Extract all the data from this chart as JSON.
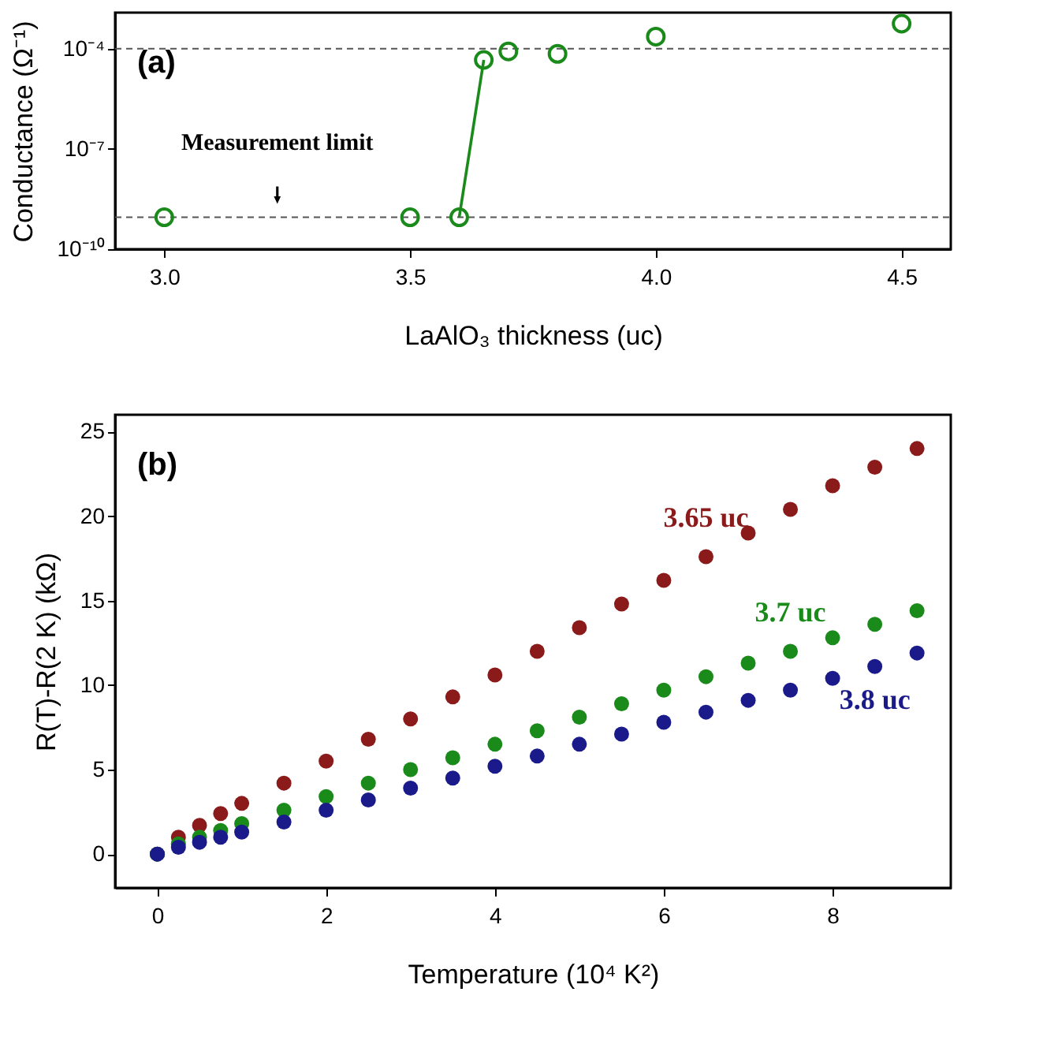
{
  "chart_data": [
    {
      "type": "scatter",
      "xlabel": "LaAlO₃ thickness (uc)",
      "ylabel": "Conductance (Ω⁻¹)",
      "log": "y",
      "marker": "circle",
      "grid": false,
      "legend": false,
      "xlim": [
        2.9,
        4.6
      ],
      "xticks": [
        {
          "value": 3,
          "label": "3.0"
        },
        {
          "value": 3.5,
          "label": "3.5"
        },
        {
          "value": 4,
          "label": "4.0"
        },
        {
          "value": 4.5,
          "label": "4.5"
        }
      ],
      "ylim": [
        1e-10,
        0.0012
      ],
      "yticks": [
        {
          "value": 1e-10,
          "label": "10⁻¹⁰"
        },
        {
          "value": 1e-07,
          "label": "10⁻⁷"
        },
        {
          "value": 0.0001,
          "label": "10⁻⁴"
        }
      ],
      "series": [
        {
          "color": "#1a8a1a",
          "x": [
            3.0,
            3.5,
            3.6,
            3.65,
            3.7,
            3.8,
            4.0,
            4.5
          ],
          "values": [
            9e-10,
            9e-10,
            9e-10,
            4.6e-05,
            8.3e-05,
            7e-05,
            0.00023,
            0.00056
          ]
        },
        {
          "type": "line",
          "marker": "none",
          "color": "#1a8a1a",
          "x": [
            3.6,
            3.65
          ],
          "values": [
            9e-10,
            4.6e-05
          ]
        }
      ],
      "ref_lines": [
        {
          "axis": "y",
          "value": 9e-10,
          "line_style": "dashed",
          "color": "#555555"
        },
        {
          "axis": "y",
          "value": 0.0001,
          "line_style": "dashed",
          "color": "#555555"
        }
      ],
      "annotations": [
        "(a)",
        {
          "text": "Measurement limit",
          "x": 3.23,
          "y": 9e-10
        }
      ]
    },
    {
      "type": "scatter",
      "xlabel": "Temperature (10⁴ K²)",
      "ylabel": "R(T)-R(2 K) (kΩ)",
      "marker": "circle",
      "grid": false,
      "legend": false,
      "xlim": [
        -0.5,
        9.4
      ],
      "xticks": [
        0,
        2,
        4,
        6,
        8
      ],
      "ylim": [
        -2,
        26
      ],
      "yticks": [
        0,
        5,
        10,
        15,
        20,
        25
      ],
      "x": [
        0,
        0.25,
        0.5,
        0.75,
        1,
        1.5,
        2,
        2.5,
        3,
        3.5,
        4,
        4.5,
        5,
        5.5,
        6,
        6.5,
        7,
        7.5,
        8,
        8.5,
        9
      ],
      "series": [
        {
          "name": "3.65 uc",
          "color": "#8b1a1a",
          "values": [
            0,
            1.0,
            1.7,
            2.4,
            3.0,
            4.2,
            5.5,
            6.8,
            8.0,
            9.3,
            10.6,
            12.0,
            13.4,
            14.8,
            16.2,
            17.6,
            19.0,
            20.4,
            21.8,
            22.9,
            24.0
          ]
        },
        {
          "name": "3.7 uc",
          "color": "#1a8a1a",
          "values": [
            0,
            0.6,
            1.0,
            1.4,
            1.8,
            2.6,
            3.4,
            4.2,
            5.0,
            5.7,
            6.5,
            7.3,
            8.1,
            8.9,
            9.7,
            10.5,
            11.3,
            12.0,
            12.8,
            13.6,
            14.4
          ]
        },
        {
          "name": "3.8 uc",
          "color": "#1a1a8b",
          "values": [
            0,
            0.4,
            0.7,
            1.0,
            1.3,
            1.9,
            2.6,
            3.2,
            3.9,
            4.5,
            5.2,
            5.8,
            6.5,
            7.1,
            7.8,
            8.4,
            9.1,
            9.7,
            10.4,
            11.1,
            11.9
          ]
        }
      ],
      "annotations": [
        "(b)"
      ]
    }
  ]
}
